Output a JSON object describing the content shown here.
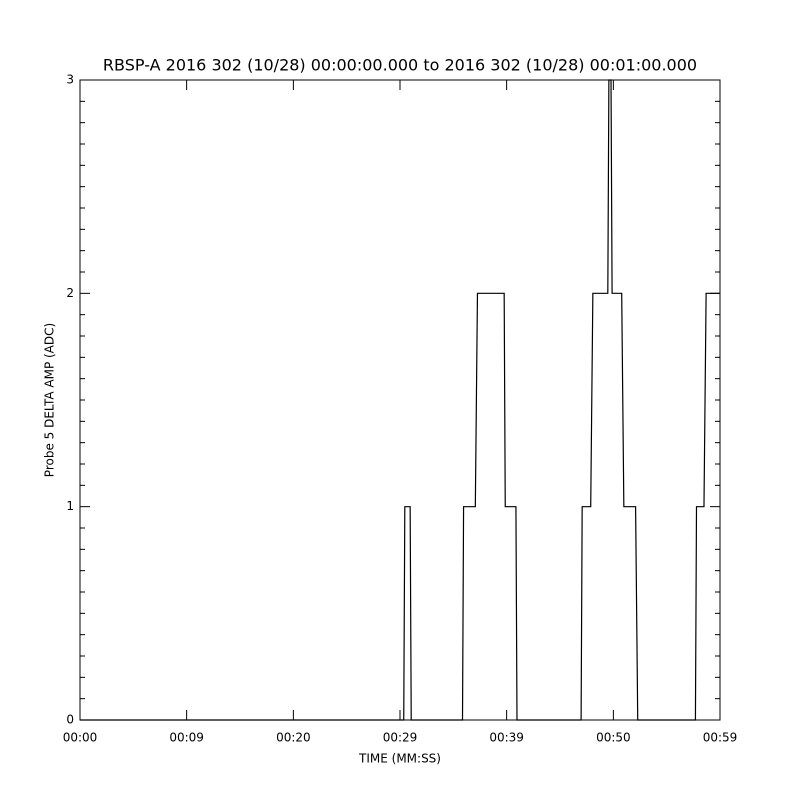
{
  "chart_data": {
    "type": "line",
    "title": "RBSP-A 2016 302 (10/28) 00:00:00.000 to 2016 302 (10/28) 00:01:00.000",
    "x_label": "TIME (MM:SS)",
    "y_label": "Probe 5 DELTA AMP (ADC)",
    "xlim": [
      0,
      59.9
    ],
    "xticks": [
      {
        "value": 0,
        "label": "00:00"
      },
      {
        "value": 9.98,
        "label": "00:09"
      },
      {
        "value": 19.97,
        "label": "00:20"
      },
      {
        "value": 29.95,
        "label": "00:29"
      },
      {
        "value": 39.93,
        "label": "00:39"
      },
      {
        "value": 49.92,
        "label": "00:50"
      },
      {
        "value": 59.9,
        "label": "00:59"
      }
    ],
    "ylim": [
      0,
      3
    ],
    "yticks": [
      0,
      1,
      2,
      3
    ],
    "color": "#000000",
    "series": [
      {
        "x": [
          0,
          30.3,
          30.4,
          30.9,
          31.0,
          35.8,
          35.9,
          37.0,
          37.1,
          37.2,
          37.3,
          39.7,
          39.8,
          40.8,
          40.9,
          46.9,
          47.0,
          47.8,
          47.9,
          48.0,
          49.4,
          49.5,
          49.7,
          49.8,
          50.7,
          50.8,
          50.9,
          52.0,
          52.1,
          52.2,
          52.3,
          57.6,
          57.7,
          58.4,
          58.5,
          58.6,
          59.9
        ],
        "values": [
          0,
          0,
          1,
          1,
          0,
          0,
          1,
          1,
          1.5,
          2,
          2,
          2,
          1,
          1,
          0,
          0,
          1,
          1,
          1.5,
          2,
          2,
          3,
          3,
          2,
          2,
          1.5,
          1,
          1,
          0.5,
          0,
          0,
          0,
          1,
          1,
          1.5,
          2,
          2
        ]
      }
    ]
  }
}
